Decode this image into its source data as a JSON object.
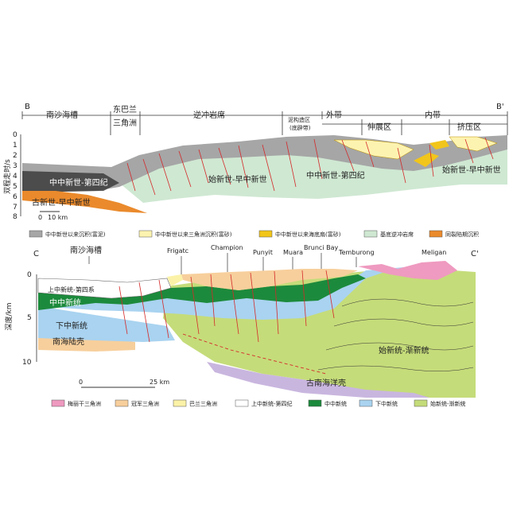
{
  "section_b": {
    "end_left": "B",
    "end_right": "B'",
    "zones": [
      "南沙海槽",
      "东巴兰",
      "三角洲",
      "逆冲岩席",
      "泥构造区",
      "(底辟带)",
      "外带",
      "伸展区",
      "内带",
      "挤压区"
    ],
    "units": [
      "中中新世-第四纪",
      "古新世-早中新世",
      "始新世-早中新世",
      "中中新世-第四纪",
      "始新世-早中新世"
    ],
    "y_axis_title": "双程走时/s",
    "y_ticks": [
      "0",
      "1",
      "2",
      "3",
      "4",
      "5",
      "6",
      "7",
      "8"
    ],
    "scale": {
      "zero": "0",
      "label": "10 km"
    }
  },
  "legend_b": [
    {
      "label": "中中新世以来沉积(富泥)",
      "color": "#a6a6a6"
    },
    {
      "label": "中中新世以来三角洲沉积(富砂)",
      "color": "#fdf3b0"
    },
    {
      "label": "中中新世以来海底扇(富砂)",
      "color": "#f2c51a"
    },
    {
      "label": "基底逆冲岩席",
      "color": "#cfe8d2"
    },
    {
      "label": "同裂陷期沉积",
      "color": "#ea8a2c"
    }
  ],
  "section_c": {
    "end_left": "C",
    "end_right": "C'",
    "top_labels": [
      "南沙海槽",
      "Frigatc",
      "Champion",
      "Punyit",
      "Muara",
      "Brunci Bay",
      "Temburong",
      "Meligan"
    ],
    "units": [
      "上中新统-第四系",
      "中中新统",
      "下中新统",
      "南海陆壳",
      "始新统-渐新统",
      "古南海洋壳"
    ],
    "y_axis_title": "深度/km",
    "y_ticks": [
      "0",
      "5",
      "10"
    ],
    "scale": {
      "zero": "0",
      "label": "25 km"
    }
  },
  "legend_c": [
    {
      "label": "梅丽干三角洲",
      "color": "#ef9ac0"
    },
    {
      "label": "冠军三角洲",
      "color": "#f7cf9c"
    },
    {
      "label": "巴兰三角洲",
      "color": "#fbf2a8"
    },
    {
      "label": "上中新统-第四纪",
      "color": "#ffffff"
    },
    {
      "label": "中中新统",
      "color": "#1c8a3c"
    },
    {
      "label": "下中新统",
      "color": "#a9d3f0"
    },
    {
      "label": "始新统-渐新统",
      "color": "#c5dc7a"
    }
  ]
}
